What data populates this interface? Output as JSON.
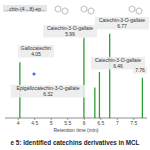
{
  "chart_data": {
    "type": "stem",
    "title": "e 5: Identified catechins derivatives in MCL",
    "x_label": "Retention time (min)",
    "annotations": [
      "...chin-(4→8)-ep..."
    ],
    "x": [
      4.05,
      5.99,
      6.32,
      6.46,
      6.77,
      7.76
    ],
    "values": [
      57,
      82,
      31,
      47,
      86,
      41
    ],
    "peak_names": [
      "Gallocatechin",
      "Catechin-3-O-gallate",
      "Epigallocatechin-3-O-gallate",
      "Catechin-3-O-gallate",
      "Catechin-3-O-gallate",
      null
    ],
    "color": "#2e9e3a",
    "xlim": [
      3.6,
      7.9
    ],
    "xticks": [
      4,
      4.5,
      5,
      5.5,
      6,
      6.5,
      7,
      7.5
    ],
    "ylim": [
      0,
      100
    ],
    "grid": false,
    "tick_labels": "x"
  }
}
